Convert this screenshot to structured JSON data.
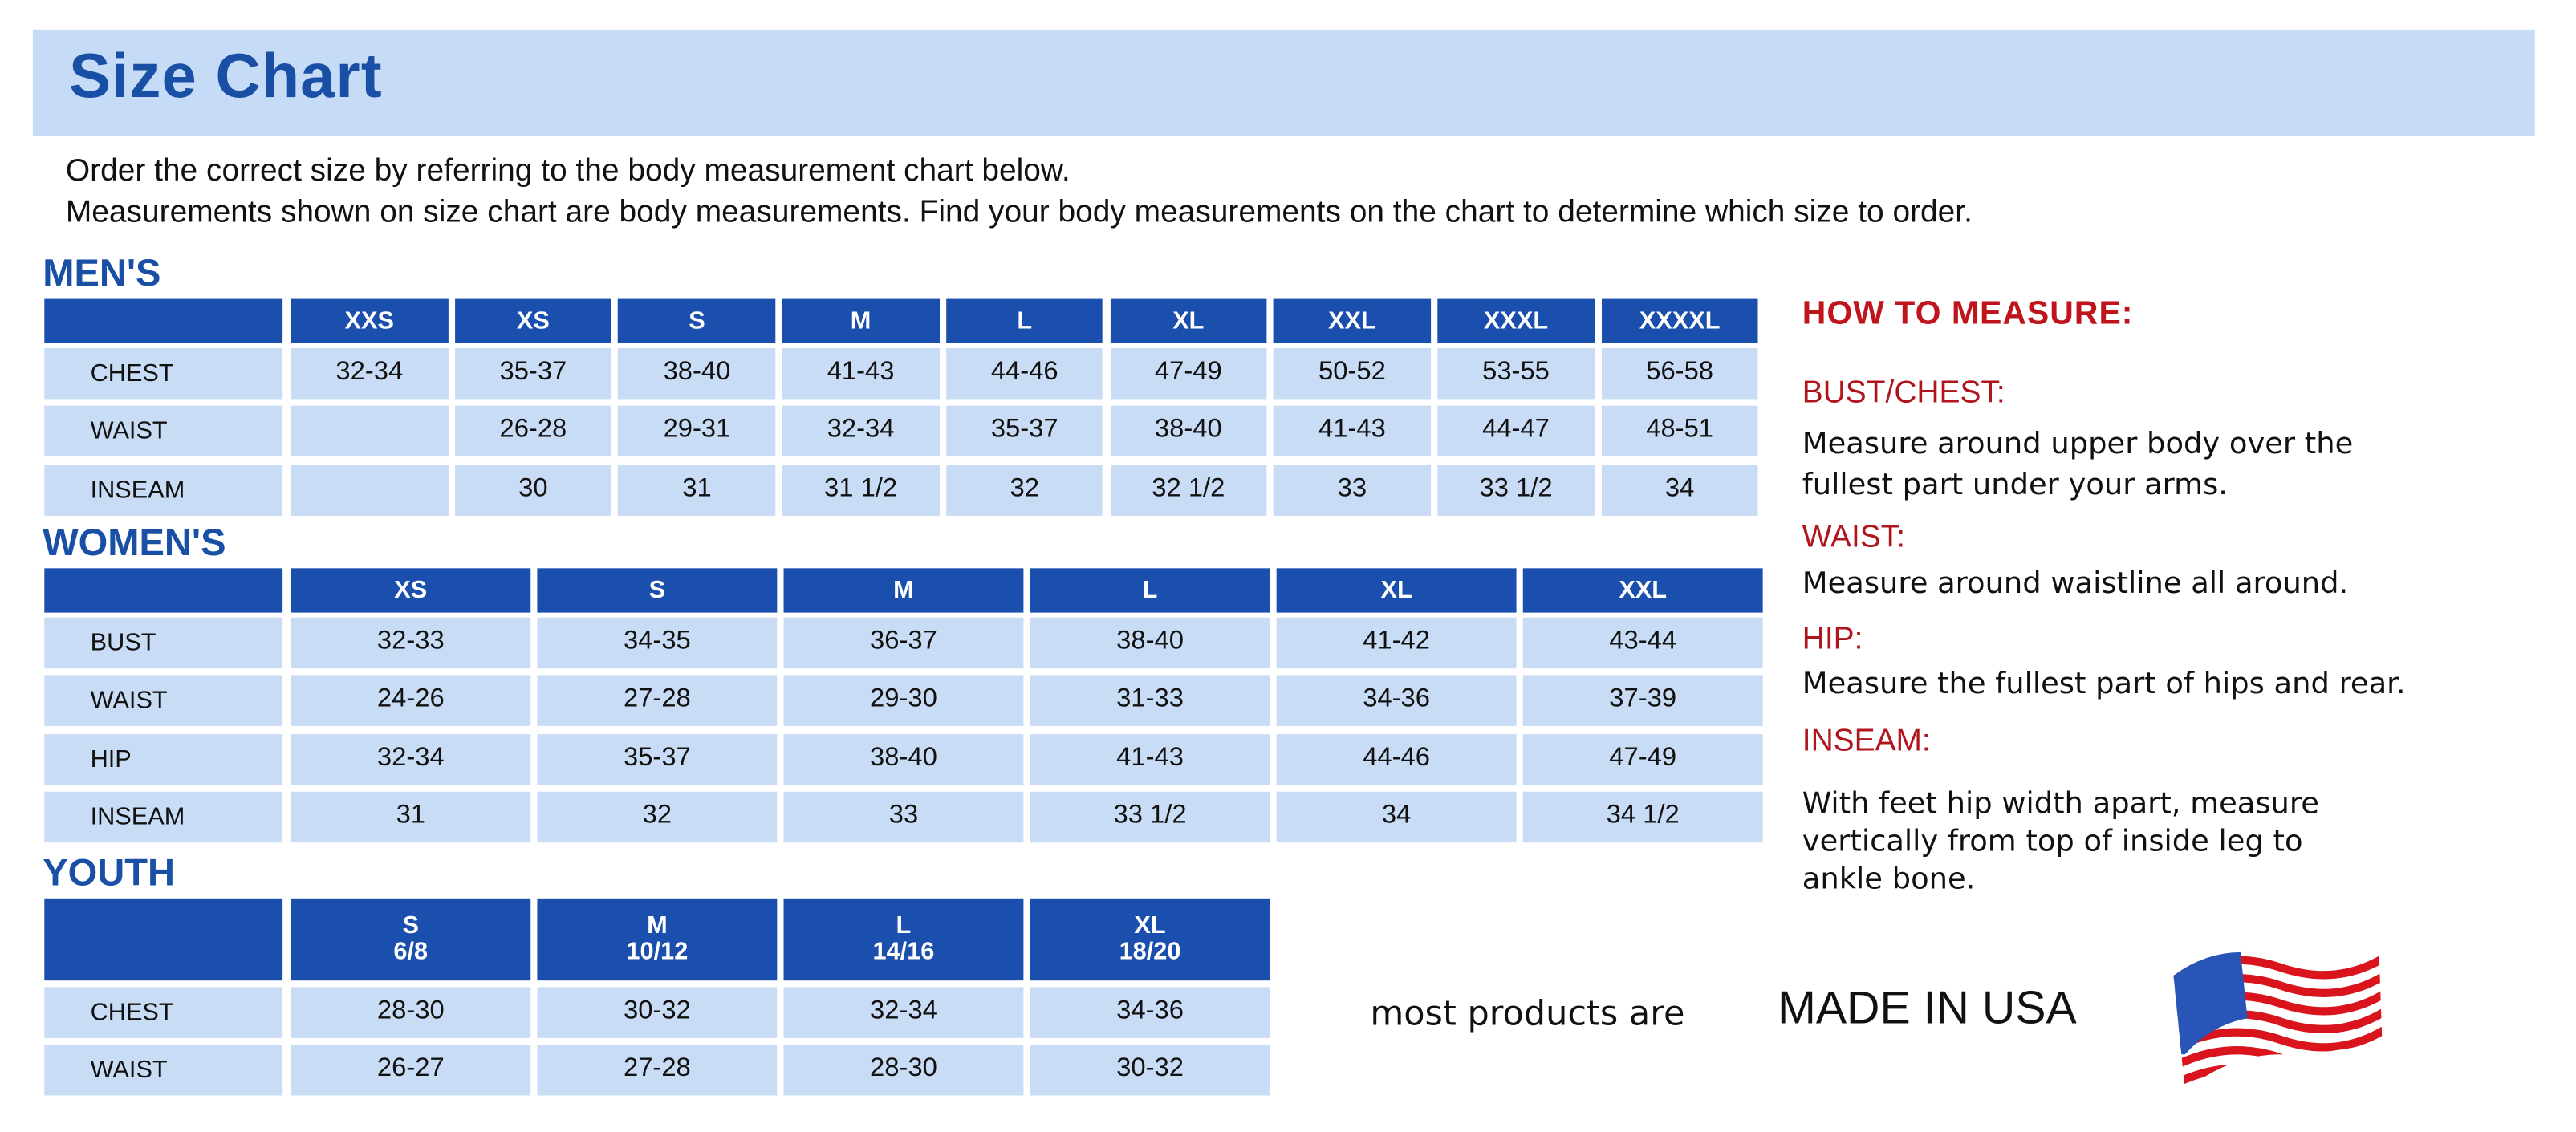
{
  "title": "Size Chart",
  "intro": [
    "Order the correct size by referring to the body measurement chart below.",
    "Measurements shown on size chart are body measurements.  Find your body measurements on the chart to determine which size to order."
  ],
  "colors": {
    "brand_blue": "#1b4fae",
    "cell_blue": "#c9dcf5",
    "accent_red": "#c0141c"
  },
  "mens": {
    "label": "MEN'S",
    "sizes": [
      "XXS",
      "XS",
      "S",
      "M",
      "L",
      "XL",
      "XXL",
      "XXXL",
      "XXXXL"
    ],
    "rows": [
      {
        "name": "CHEST",
        "values": [
          "32-34",
          "35-37",
          "38-40",
          "41-43",
          "44-46",
          "47-49",
          "50-52",
          "53-55",
          "56-58"
        ]
      },
      {
        "name": "WAIST",
        "values": [
          "",
          "26-28",
          "29-31",
          "32-34",
          "35-37",
          "38-40",
          "41-43",
          "44-47",
          "48-51"
        ]
      },
      {
        "name": "INSEAM",
        "values": [
          "",
          "30",
          "31",
          "31 1/2",
          "32",
          "32 1/2",
          "33",
          "33 1/2",
          "34"
        ]
      }
    ]
  },
  "womens": {
    "label": "WOMEN'S",
    "sizes": [
      "XS",
      "S",
      "M",
      "L",
      "XL",
      "XXL"
    ],
    "rows": [
      {
        "name": "BUST",
        "values": [
          "32-33",
          "34-35",
          "36-37",
          "38-40",
          "41-42",
          "43-44"
        ]
      },
      {
        "name": "WAIST",
        "values": [
          "24-26",
          "27-28",
          "29-30",
          "31-33",
          "34-36",
          "37-39"
        ]
      },
      {
        "name": "HIP",
        "values": [
          "32-34",
          "35-37",
          "38-40",
          "41-43",
          "44-46",
          "47-49"
        ]
      },
      {
        "name": "INSEAM",
        "values": [
          "31",
          "32",
          "33",
          "33 1/2",
          "34",
          "34 1/2"
        ]
      }
    ]
  },
  "youth": {
    "label": "YOUTH",
    "sizes": [
      [
        "S",
        "6/8"
      ],
      [
        "M",
        "10/12"
      ],
      [
        "L",
        "14/16"
      ],
      [
        "XL",
        "18/20"
      ]
    ],
    "rows": [
      {
        "name": "CHEST",
        "values": [
          "28-30",
          "30-32",
          "32-34",
          "34-36"
        ]
      },
      {
        "name": "WAIST",
        "values": [
          "26-27",
          "27-28",
          "28-30",
          "30-32"
        ]
      }
    ]
  },
  "how_to_measure": {
    "title": "HOW TO MEASURE:",
    "items": [
      {
        "heading": "BUST/CHEST:",
        "lines": [
          "Measure around upper body over the",
          "fullest part under your arms."
        ]
      },
      {
        "heading": "WAIST:",
        "lines": [
          "Measure around waistline all around."
        ]
      },
      {
        "heading": "HIP:",
        "lines": [
          "Measure the fullest part of hips and rear."
        ]
      },
      {
        "heading": "INSEAM:",
        "lines": [
          "With feet hip width apart, measure",
          "vertically from top of inside leg to",
          "ankle bone."
        ]
      }
    ]
  },
  "footer": {
    "prefix": "most products are",
    "emphasis": "MADE IN USA",
    "icon": "us-flag-icon"
  }
}
